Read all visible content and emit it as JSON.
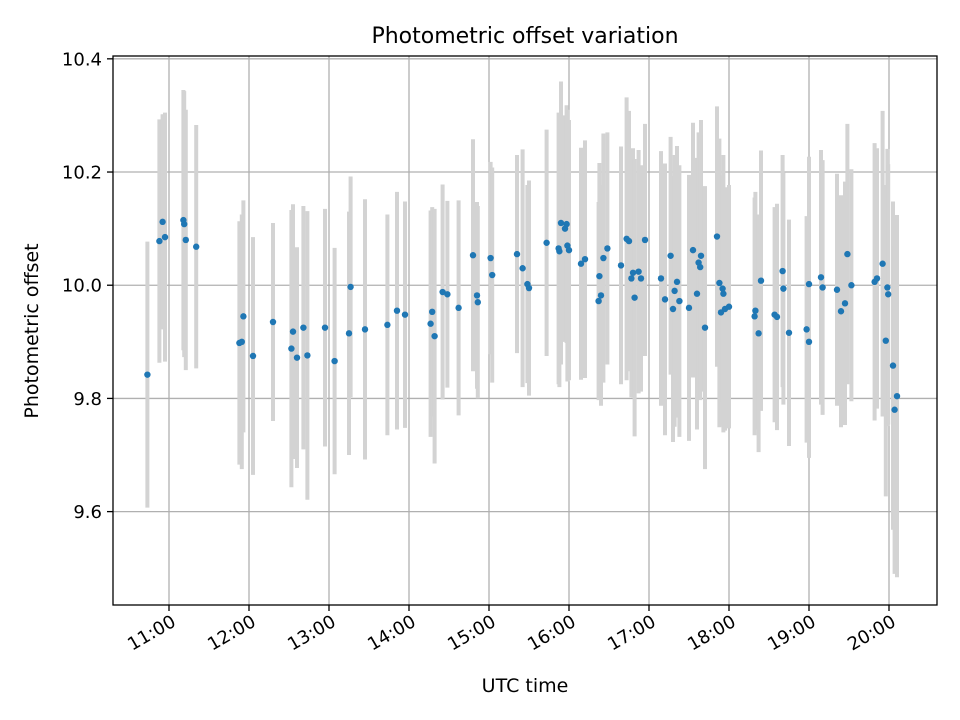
{
  "chart_data": {
    "type": "scatter",
    "title": "Photometric offset variation",
    "xlabel": "UTC time",
    "ylabel": "Photometric offset",
    "x_unit": "UTC time (hours of day, fractional)",
    "xlim": [
      10.3,
      20.6
    ],
    "ylim": [
      9.435,
      10.405
    ],
    "x_ticks": [
      11,
      12,
      13,
      14,
      15,
      16,
      17,
      18,
      19,
      20
    ],
    "x_tick_labels": [
      "11:00",
      "12:00",
      "13:00",
      "14:00",
      "15:00",
      "16:00",
      "17:00",
      "18:00",
      "19:00",
      "20:00"
    ],
    "y_ticks": [
      9.6,
      9.8,
      10.0,
      10.2,
      10.4
    ],
    "y_tick_labels": [
      "9.6",
      "9.8",
      "10.0",
      "10.2",
      "10.4"
    ],
    "grid": true,
    "legend": false,
    "marker_color": "#1f77b4",
    "errorbar_color": "#d3d3d3",
    "series": [
      {
        "points": [
          [
            10.73,
            9.842,
            0.235
          ],
          [
            10.88,
            10.078,
            0.215
          ],
          [
            10.92,
            10.112,
            0.19
          ],
          [
            10.95,
            10.085,
            0.22
          ],
          [
            11.18,
            10.115,
            0.23
          ],
          [
            11.19,
            10.108,
            0.235
          ],
          [
            11.21,
            10.08,
            0.23
          ],
          [
            11.34,
            10.068,
            0.215
          ],
          [
            11.88,
            9.898,
            0.215
          ],
          [
            11.91,
            9.9,
            0.225
          ],
          [
            11.93,
            9.945,
            0.205
          ],
          [
            12.05,
            9.875,
            0.21
          ],
          [
            12.3,
            9.935,
            0.175
          ],
          [
            12.53,
            9.888,
            0.245
          ],
          [
            12.55,
            9.918,
            0.225
          ],
          [
            12.6,
            9.872,
            0.195
          ],
          [
            12.68,
            9.925,
            0.215
          ],
          [
            12.73,
            9.876,
            0.255
          ],
          [
            12.95,
            9.925,
            0.21
          ],
          [
            13.07,
            9.866,
            0.2
          ],
          [
            13.25,
            9.915,
            0.215
          ],
          [
            13.27,
            9.997,
            0.195
          ],
          [
            13.45,
            9.922,
            0.23
          ],
          [
            13.73,
            9.93,
            0.195
          ],
          [
            13.85,
            9.955,
            0.21
          ],
          [
            13.95,
            9.948,
            0.2
          ],
          [
            14.27,
            9.932,
            0.2
          ],
          [
            14.29,
            9.953,
            0.185
          ],
          [
            14.32,
            9.91,
            0.225
          ],
          [
            14.42,
            9.988,
            0.19
          ],
          [
            14.48,
            9.984,
            0.165
          ],
          [
            14.62,
            9.96,
            0.19
          ],
          [
            14.8,
            10.053,
            0.205
          ],
          [
            14.85,
            9.982,
            0.165
          ],
          [
            14.86,
            9.97,
            0.17
          ],
          [
            15.02,
            10.048,
            0.17
          ],
          [
            15.04,
            10.018,
            0.19
          ],
          [
            15.35,
            10.055,
            0.175
          ],
          [
            15.42,
            10.03,
            0.21
          ],
          [
            15.48,
            10.002,
            0.175
          ],
          [
            15.5,
            9.995,
            0.19
          ],
          [
            15.72,
            10.075,
            0.2
          ],
          [
            15.87,
            10.065,
            0.24
          ],
          [
            15.88,
            10.06,
            0.24
          ],
          [
            15.9,
            10.11,
            0.25
          ],
          [
            15.95,
            10.1,
            0.2
          ],
          [
            15.97,
            10.108,
            0.21
          ],
          [
            15.98,
            10.07,
            0.24
          ],
          [
            16.0,
            10.062,
            0.23
          ],
          [
            16.15,
            10.038,
            0.205
          ],
          [
            16.2,
            10.046,
            0.21
          ],
          [
            16.37,
            9.972,
            0.175
          ],
          [
            16.38,
            10.016,
            0.2
          ],
          [
            16.4,
            9.982,
            0.195
          ],
          [
            16.43,
            10.048,
            0.22
          ],
          [
            16.48,
            10.065,
            0.205
          ],
          [
            16.65,
            10.035,
            0.21
          ],
          [
            16.72,
            10.082,
            0.25
          ],
          [
            16.75,
            10.078,
            0.23
          ],
          [
            16.78,
            10.012,
            0.21
          ],
          [
            16.8,
            10.022,
            0.22
          ],
          [
            16.82,
            9.978,
            0.245
          ],
          [
            16.87,
            10.024,
            0.215
          ],
          [
            16.95,
            10.08,
            0.205
          ],
          [
            16.9,
            10.012,
            0.2
          ],
          [
            17.15,
            10.012,
            0.225
          ],
          [
            17.2,
            9.975,
            0.24
          ],
          [
            17.27,
            10.052,
            0.21
          ],
          [
            17.3,
            9.958,
            0.235
          ],
          [
            17.32,
            9.99,
            0.24
          ],
          [
            17.35,
            10.006,
            0.24
          ],
          [
            17.38,
            9.972,
            0.24
          ],
          [
            17.5,
            9.96,
            0.235
          ],
          [
            17.55,
            10.062,
            0.225
          ],
          [
            17.6,
            9.985,
            0.24
          ],
          [
            17.62,
            10.04,
            0.23
          ],
          [
            17.65,
            10.052,
            0.24
          ],
          [
            17.64,
            10.032,
            0.235
          ],
          [
            17.7,
            9.925,
            0.25
          ],
          [
            17.85,
            10.086,
            0.23
          ],
          [
            17.88,
            10.004,
            0.255
          ],
          [
            17.9,
            9.952,
            0.2
          ],
          [
            17.92,
            9.994,
            0.2
          ],
          [
            17.93,
            9.985,
            0.245
          ],
          [
            17.95,
            9.958,
            0.215
          ],
          [
            18.0,
            9.962,
            0.215
          ],
          [
            18.32,
            9.945,
            0.21
          ],
          [
            18.33,
            9.955,
            0.21
          ],
          [
            18.37,
            9.915,
            0.21
          ],
          [
            18.4,
            10.008,
            0.23
          ],
          [
            18.57,
            9.948,
            0.19
          ],
          [
            18.6,
            9.944,
            0.2
          ],
          [
            18.67,
            10.025,
            0.205
          ],
          [
            18.68,
            9.994,
            0.205
          ],
          [
            18.75,
            9.916,
            0.2
          ],
          [
            18.97,
            9.922,
            0.2
          ],
          [
            19.0,
            9.9,
            0.205
          ],
          [
            19.0,
            10.002,
            0.225
          ],
          [
            19.15,
            10.014,
            0.225
          ],
          [
            19.17,
            9.996,
            0.225
          ],
          [
            19.35,
            9.992,
            0.205
          ],
          [
            19.4,
            9.954,
            0.205
          ],
          [
            19.45,
            9.968,
            0.215
          ],
          [
            19.48,
            10.055,
            0.23
          ],
          [
            19.53,
            10.0,
            0.205
          ],
          [
            19.82,
            10.006,
            0.245
          ],
          [
            19.85,
            10.012,
            0.23
          ],
          [
            19.92,
            10.038,
            0.27
          ],
          [
            19.96,
            9.902,
            0.275
          ],
          [
            19.98,
            9.996,
            0.245
          ],
          [
            19.99,
            9.984,
            0.23
          ],
          [
            20.05,
            9.858,
            0.29
          ],
          [
            20.07,
            9.78,
            0.29
          ],
          [
            20.1,
            9.804,
            0.32
          ]
        ]
      }
    ]
  }
}
